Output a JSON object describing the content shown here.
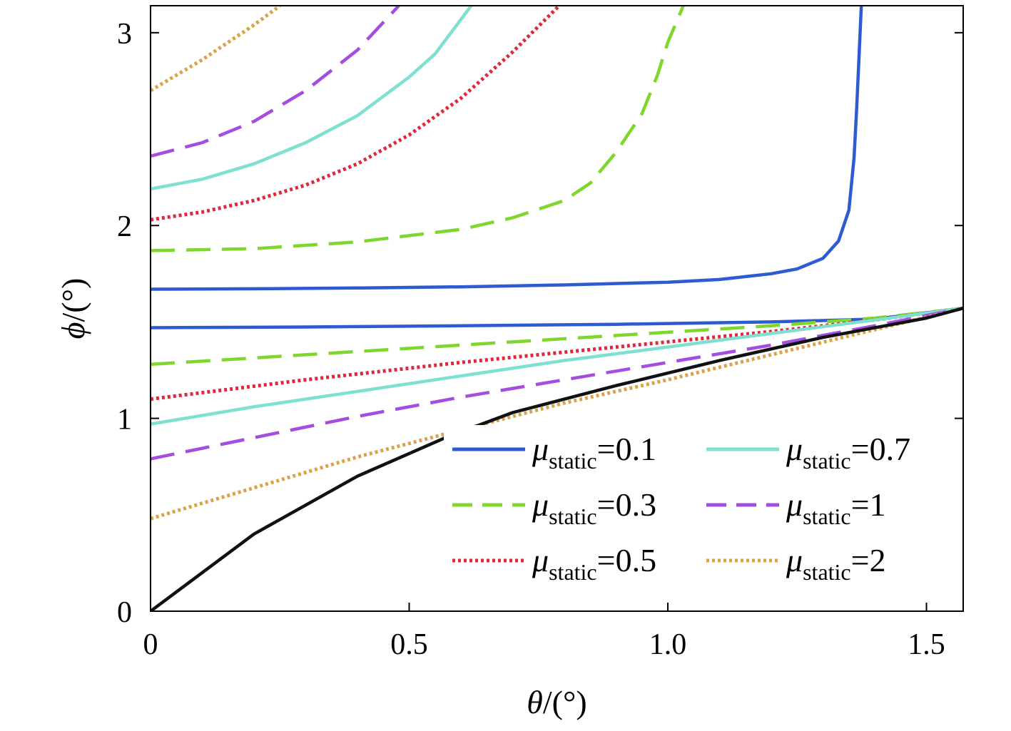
{
  "chart_data": {
    "type": "line",
    "xlabel": {
      "symbol": "θ",
      "unit": "/(°)"
    },
    "ylabel": {
      "symbol": "ϕ",
      "unit": "/(°)"
    },
    "xlim": [
      0,
      1.571
    ],
    "ylim": [
      0,
      3.14
    ],
    "xticks": [
      0,
      0.5,
      1.0,
      1.5
    ],
    "xtick_labels": [
      "0",
      "0.5",
      "1.0",
      "1.5"
    ],
    "yticks": [
      0,
      1,
      2,
      3
    ],
    "ytick_labels": [
      "0",
      "1",
      "2",
      "3"
    ],
    "grid": false,
    "legend_position": "lower-right",
    "legend_symbol": "μ",
    "legend_subscript": "static",
    "series": [
      {
        "name": "μstatic=0.1",
        "legend": {
          "value": "=0.1"
        },
        "color": "#2d5bd1",
        "style": "solid",
        "upper": [
          [
            0,
            1.67
          ],
          [
            0.2,
            1.672
          ],
          [
            0.4,
            1.676
          ],
          [
            0.6,
            1.682
          ],
          [
            0.8,
            1.692
          ],
          [
            1.0,
            1.706
          ],
          [
            1.1,
            1.72
          ],
          [
            1.2,
            1.75
          ],
          [
            1.25,
            1.775
          ],
          [
            1.3,
            1.83
          ],
          [
            1.33,
            1.92
          ],
          [
            1.35,
            2.08
          ],
          [
            1.36,
            2.35
          ],
          [
            1.365,
            2.6
          ],
          [
            1.37,
            2.9
          ],
          [
            1.374,
            3.14
          ]
        ],
        "lower": [
          [
            0,
            1.47
          ],
          [
            0.3,
            1.474
          ],
          [
            0.6,
            1.48
          ],
          [
            0.9,
            1.488
          ],
          [
            1.2,
            1.5
          ],
          [
            1.4,
            1.515
          ],
          [
            1.571,
            1.571
          ]
        ]
      },
      {
        "name": "μstatic=0.3",
        "legend": {
          "value": "=0.3"
        },
        "color": "#7fd62c",
        "style": "dashed",
        "upper": [
          [
            0,
            1.87
          ],
          [
            0.2,
            1.88
          ],
          [
            0.4,
            1.915
          ],
          [
            0.6,
            1.98
          ],
          [
            0.7,
            2.04
          ],
          [
            0.8,
            2.13
          ],
          [
            0.85,
            2.22
          ],
          [
            0.9,
            2.38
          ],
          [
            0.95,
            2.58
          ],
          [
            0.98,
            2.78
          ],
          [
            1.0,
            2.95
          ],
          [
            1.03,
            3.14
          ]
        ],
        "lower": [
          [
            0,
            1.28
          ],
          [
            0.3,
            1.33
          ],
          [
            0.6,
            1.38
          ],
          [
            0.9,
            1.43
          ],
          [
            1.2,
            1.48
          ],
          [
            1.4,
            1.52
          ],
          [
            1.571,
            1.571
          ]
        ]
      },
      {
        "name": "μstatic=0.5",
        "legend": {
          "value": "=0.5"
        },
        "color": "#e0283a",
        "style": "dotted",
        "upper": [
          [
            0,
            2.03
          ],
          [
            0.1,
            2.07
          ],
          [
            0.2,
            2.13
          ],
          [
            0.3,
            2.21
          ],
          [
            0.4,
            2.32
          ],
          [
            0.5,
            2.47
          ],
          [
            0.6,
            2.66
          ],
          [
            0.7,
            2.9
          ],
          [
            0.79,
            3.14
          ]
        ],
        "lower": [
          [
            0,
            1.1
          ],
          [
            0.3,
            1.2
          ],
          [
            0.6,
            1.29
          ],
          [
            0.9,
            1.37
          ],
          [
            1.2,
            1.45
          ],
          [
            1.4,
            1.51
          ],
          [
            1.571,
            1.571
          ]
        ]
      },
      {
        "name": "μstatic=0.7",
        "legend": {
          "value": "=0.7"
        },
        "color": "#7ee0d0",
        "style": "solid",
        "upper": [
          [
            0,
            2.19
          ],
          [
            0.1,
            2.24
          ],
          [
            0.2,
            2.32
          ],
          [
            0.3,
            2.43
          ],
          [
            0.4,
            2.57
          ],
          [
            0.5,
            2.77
          ],
          [
            0.55,
            2.89
          ],
          [
            0.62,
            3.14
          ]
        ],
        "lower": [
          [
            0,
            0.97
          ],
          [
            0.2,
            1.06
          ],
          [
            0.4,
            1.14
          ],
          [
            0.6,
            1.22
          ],
          [
            0.8,
            1.3
          ],
          [
            1.0,
            1.37
          ],
          [
            1.2,
            1.44
          ],
          [
            1.4,
            1.51
          ],
          [
            1.571,
            1.571
          ]
        ]
      },
      {
        "name": "μstatic=1",
        "legend": {
          "value": "=1"
        },
        "color": "#a34ee0",
        "style": "dashed",
        "upper": [
          [
            0,
            2.36
          ],
          [
            0.1,
            2.43
          ],
          [
            0.2,
            2.54
          ],
          [
            0.3,
            2.7
          ],
          [
            0.4,
            2.91
          ],
          [
            0.48,
            3.14
          ]
        ],
        "lower": [
          [
            0,
            0.79
          ],
          [
            0.2,
            0.9
          ],
          [
            0.4,
            1.01
          ],
          [
            0.6,
            1.11
          ],
          [
            0.8,
            1.2
          ],
          [
            1.0,
            1.29
          ],
          [
            1.2,
            1.38
          ],
          [
            1.4,
            1.48
          ],
          [
            1.571,
            1.571
          ]
        ]
      },
      {
        "name": "μstatic=2",
        "legend": {
          "value": "=2"
        },
        "color": "#dca24a",
        "style": "dotted",
        "upper": [
          [
            0,
            2.7
          ],
          [
            0.1,
            2.86
          ],
          [
            0.2,
            3.04
          ],
          [
            0.25,
            3.14
          ]
        ],
        "lower": [
          [
            0,
            0.48
          ],
          [
            0.2,
            0.64
          ],
          [
            0.4,
            0.8
          ],
          [
            0.6,
            0.94
          ],
          [
            0.8,
            1.08
          ],
          [
            1.0,
            1.2
          ],
          [
            1.2,
            1.33
          ],
          [
            1.4,
            1.46
          ],
          [
            1.571,
            1.571
          ]
        ]
      },
      {
        "color": "#111111",
        "style": "solid",
        "upper": [],
        "lower": [
          [
            0,
            0
          ],
          [
            0.2,
            0.4
          ],
          [
            0.4,
            0.7
          ],
          [
            0.57,
            0.9
          ],
          [
            0.7,
            1.03
          ],
          [
            0.9,
            1.17
          ],
          [
            1.1,
            1.3
          ],
          [
            1.3,
            1.42
          ],
          [
            1.5,
            1.52
          ],
          [
            1.571,
            1.571
          ]
        ]
      }
    ]
  }
}
